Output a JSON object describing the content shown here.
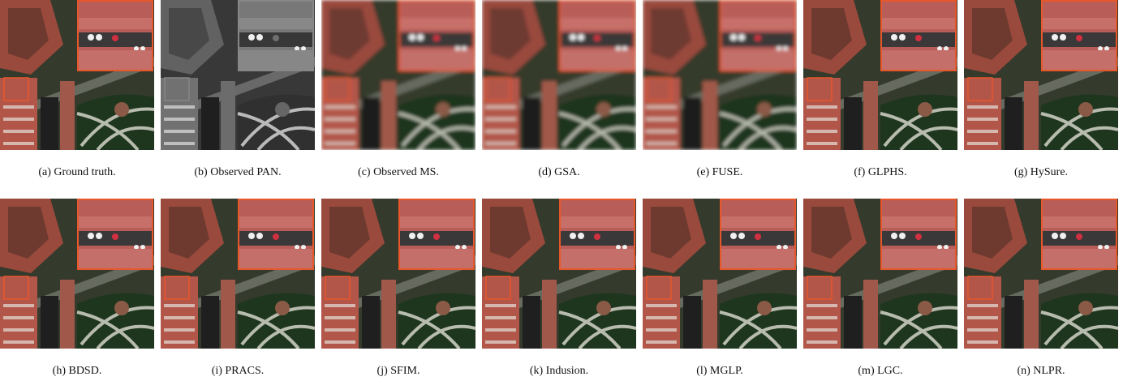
{
  "figure": {
    "captions": [
      "(a) Ground truth.",
      "(b) Observed PAN.",
      "(c) Observed MS.",
      "(d) GSA.",
      "(e) FUSE.",
      "(f) GLPHS.",
      "(g) HySure.",
      "(h) BDSD.",
      "(i) PRACS.",
      "(j) SFIM.",
      "(k) Indusion.",
      "(l) MGLP.",
      "(m) LGC.",
      "(n) NLPR."
    ]
  }
}
